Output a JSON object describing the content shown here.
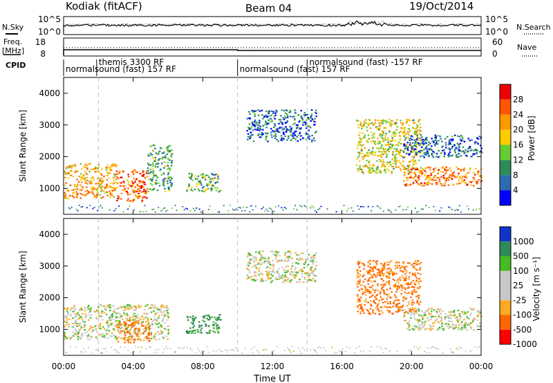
{
  "header": {
    "station": "Kodiak (fitACF)",
    "beam": "Beam 04",
    "date": "19/Oct/2014"
  },
  "sky_panel": {
    "left_label": "N.Sky",
    "right_label": "N.Search",
    "left_ticks": [
      "10^5",
      "10^0"
    ],
    "right_ticks": [
      "10^5",
      "10^0"
    ]
  },
  "freq_panel": {
    "left_label_1": "Freq.",
    "left_label_2": "[MHz]",
    "right_label": "Nave",
    "left_ticks": [
      "18",
      "8"
    ],
    "right_ticks": [
      "60",
      "0"
    ]
  },
  "cpid": {
    "label": "CPID",
    "segments": [
      {
        "text": "themis 3300 RF",
        "start_h": 1.9
      },
      {
        "text": "normalsound (fast) 157 RF",
        "start_h": 0.0
      },
      {
        "text": "normalsound (fast) 157 RF",
        "start_h": 10.0
      },
      {
        "text": "normalsound (fast) -157 RF",
        "start_h": 14.0
      }
    ]
  },
  "colors": {
    "power": [
      "#0000ff",
      "#2b6cb0",
      "#2e8b57",
      "#66cc33",
      "#ffcc00",
      "#ff9900",
      "#ff5500",
      "#ee0000"
    ],
    "velocity": [
      "#ff0000",
      "#ff6600",
      "#ffaa22",
      "#c8c8c8",
      "#c8c8c8",
      "#44bb22",
      "#2e8b57",
      "#1133cc"
    ],
    "ground_gray": "#c8c8c8"
  },
  "chart_data": [
    {
      "type": "heatmap",
      "name": "Power",
      "ylabel": "Slant Range [km]",
      "xlabel": "",
      "xlim": [
        0,
        24
      ],
      "ylim": [
        180,
        4500
      ],
      "x_ticks": [
        "00:00",
        "04:00",
        "08:00",
        "12:00",
        "16:00",
        "20:00",
        "00:00"
      ],
      "y_ticks": [
        1000,
        2000,
        3000,
        4000
      ],
      "colorbar": {
        "label": "Power [dB]",
        "ticks": [
          "4",
          "8",
          "12",
          "16",
          "20",
          "24",
          "28"
        ],
        "range": [
          0,
          30
        ]
      },
      "regions": [
        {
          "t": [
            0.0,
            3.0
          ],
          "r": [
            700,
            1800
          ],
          "value": 20
        },
        {
          "t": [
            3.0,
            4.8
          ],
          "r": [
            600,
            1600
          ],
          "value": 24
        },
        {
          "t": [
            4.8,
            6.2
          ],
          "r": [
            900,
            2400
          ],
          "value": 10
        },
        {
          "t": [
            7.0,
            9.0
          ],
          "r": [
            900,
            1500
          ],
          "value": 12
        },
        {
          "t": [
            10.5,
            14.5
          ],
          "r": [
            2500,
            3500
          ],
          "value": 6
        },
        {
          "t": [
            16.8,
            20.5
          ],
          "r": [
            1500,
            3200
          ],
          "value": 16
        },
        {
          "t": [
            19.5,
            24.0
          ],
          "r": [
            1100,
            1700
          ],
          "value": 22
        },
        {
          "t": [
            19.5,
            24.0
          ],
          "r": [
            2000,
            2700
          ],
          "value": 6
        }
      ]
    },
    {
      "type": "heatmap",
      "name": "Velocity",
      "ylabel": "Slant Range [km]",
      "xlabel": "Time UT",
      "xlim": [
        0,
        24
      ],
      "ylim": [
        180,
        4500
      ],
      "x_ticks": [
        "00:00",
        "04:00",
        "08:00",
        "12:00",
        "16:00",
        "20:00",
        "00:00"
      ],
      "y_ticks": [
        1000,
        2000,
        3000,
        4000
      ],
      "colorbar": {
        "label": "Velocity [m s⁻¹]",
        "ticks": [
          "1000",
          "500",
          "100",
          "25",
          "-25",
          "-100",
          "-500",
          "-1000"
        ]
      },
      "regions": [
        {
          "t": [
            0.0,
            6.0
          ],
          "r": [
            700,
            1800
          ],
          "value": 0
        },
        {
          "t": [
            3.0,
            5.0
          ],
          "r": [
            600,
            1300
          ],
          "value": -300
        },
        {
          "t": [
            7.0,
            9.0
          ],
          "r": [
            900,
            1500
          ],
          "value": 300
        },
        {
          "t": [
            10.5,
            14.5
          ],
          "r": [
            2500,
            3500
          ],
          "value": 0
        },
        {
          "t": [
            16.8,
            20.5
          ],
          "r": [
            1500,
            3200
          ],
          "value": -300
        },
        {
          "t": [
            19.5,
            24.0
          ],
          "r": [
            1000,
            1700
          ],
          "value": 0
        }
      ]
    }
  ]
}
